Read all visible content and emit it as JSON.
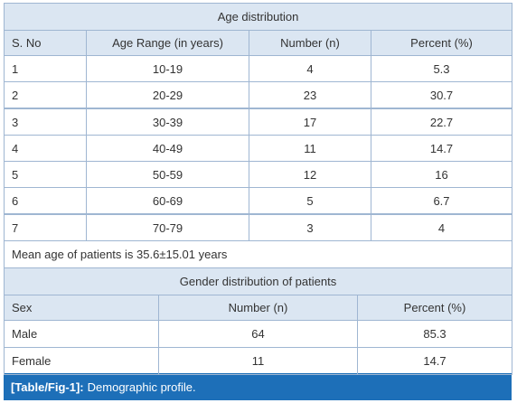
{
  "age_table": {
    "title": "Age distribution",
    "header": [
      "S. No",
      "Age Range (in years)",
      "Number (n)",
      "Percent (%)"
    ],
    "rows": [
      [
        1,
        "10-19",
        4,
        5.3
      ],
      [
        2,
        "20-29",
        23,
        30.7
      ],
      [
        3,
        "30-39",
        17,
        22.7
      ],
      [
        4,
        "40-49",
        11,
        14.7
      ],
      [
        5,
        "50-59",
        12,
        16
      ],
      [
        6,
        "60-69",
        5,
        6.7
      ],
      [
        7,
        "70-79",
        3,
        4
      ]
    ],
    "note": "Mean age of patients is 35.6±15.01 years"
  },
  "gender_table": {
    "title": "Gender distribution of patients",
    "header": [
      "Sex",
      "Number (n)",
      "Percent (%)"
    ],
    "rows": [
      [
        "Male",
        64,
        85.3
      ],
      [
        "Female",
        11,
        14.7
      ]
    ]
  },
  "caption": {
    "label": "[Table/Fig-1]:",
    "text": "Demographic profile."
  }
}
